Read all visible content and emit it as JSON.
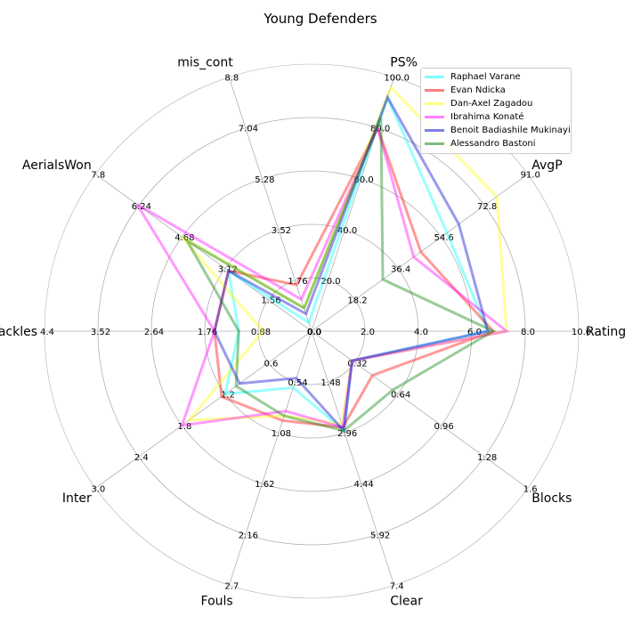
{
  "chart_data": {
    "type": "radar",
    "title": "Young Defenders",
    "axes": [
      "Rating",
      "AvgP",
      "PS%",
      "mis_cont",
      "AerialsWon",
      "Tackles",
      "Inter",
      "Fouls",
      "Clear",
      "Blocks"
    ],
    "axis_max": [
      10.0,
      91.0,
      100.0,
      8.8,
      7.8,
      4.4,
      3.0,
      2.7,
      7.4,
      1.6
    ],
    "tick_labels": [
      [
        "0.0",
        "2.0",
        "4.0",
        "6.0",
        "8.0",
        "10.0"
      ],
      [
        "0.0",
        "18.2",
        "36.4",
        "54.6",
        "72.8",
        "91.0"
      ],
      [
        "0.0",
        "20.0",
        "40.0",
        "60.0",
        "80.0",
        "100.0"
      ],
      [
        "0.0",
        "1.76",
        "3.52",
        "5.28",
        "7.04",
        "8.8"
      ],
      [
        "0.0",
        "1.56",
        "3.12",
        "4.68",
        "6.24",
        "7.8"
      ],
      [
        "0.0",
        "0.88",
        "1.76",
        "2.64",
        "3.52",
        "4.4"
      ],
      [
        "0.0",
        "0.6",
        "1.2",
        "1.8",
        "2.4",
        "3.0"
      ],
      [
        "0.0",
        "0.54",
        "1.08",
        "1.62",
        "2.16",
        "2.7"
      ],
      [
        "0.0",
        "1.48",
        "2.96",
        "4.44",
        "5.92",
        "7.4"
      ],
      [
        "0.0",
        "0.32",
        "0.64",
        "0.96",
        "1.28",
        "1.6"
      ]
    ],
    "legend_position": "top-right",
    "series": [
      {
        "name": "Raphael Varane",
        "color": "#00ffff",
        "values": [
          6.6,
          57.0,
          92.0,
          0.3,
          3.0,
          1.2,
          1.2,
          0.6,
          2.9,
          0.3
        ]
      },
      {
        "name": "Evan Ndicka",
        "color": "#ff0000",
        "values": [
          6.8,
          46.0,
          80.0,
          1.6,
          3.0,
          1.6,
          1.25,
          0.95,
          2.8,
          0.45
        ]
      },
      {
        "name": "Dan-Axel Zagadou",
        "color": "#ffff00",
        "values": [
          7.3,
          78.0,
          96.0,
          0.8,
          4.7,
          0.8,
          1.7,
          0.9,
          2.7,
          0.3
        ]
      },
      {
        "name": "Ibrahima Konaté",
        "color": "#ff00ff",
        "values": [
          7.3,
          43.0,
          80.0,
          1.1,
          6.3,
          1.6,
          1.8,
          0.85,
          2.8,
          0.3
        ]
      },
      {
        "name": "Benoit Badiashile Mukinayi",
        "color": "#0000cc",
        "values": [
          6.6,
          62.0,
          92.0,
          0.6,
          3.0,
          1.6,
          1.0,
          0.5,
          2.9,
          0.3
        ]
      },
      {
        "name": "Alessandro Bastoni",
        "color": "#008000",
        "values": [
          6.8,
          30.0,
          84.0,
          0.8,
          4.5,
          1.2,
          1.05,
          0.9,
          2.9,
          0.6
        ]
      }
    ]
  }
}
